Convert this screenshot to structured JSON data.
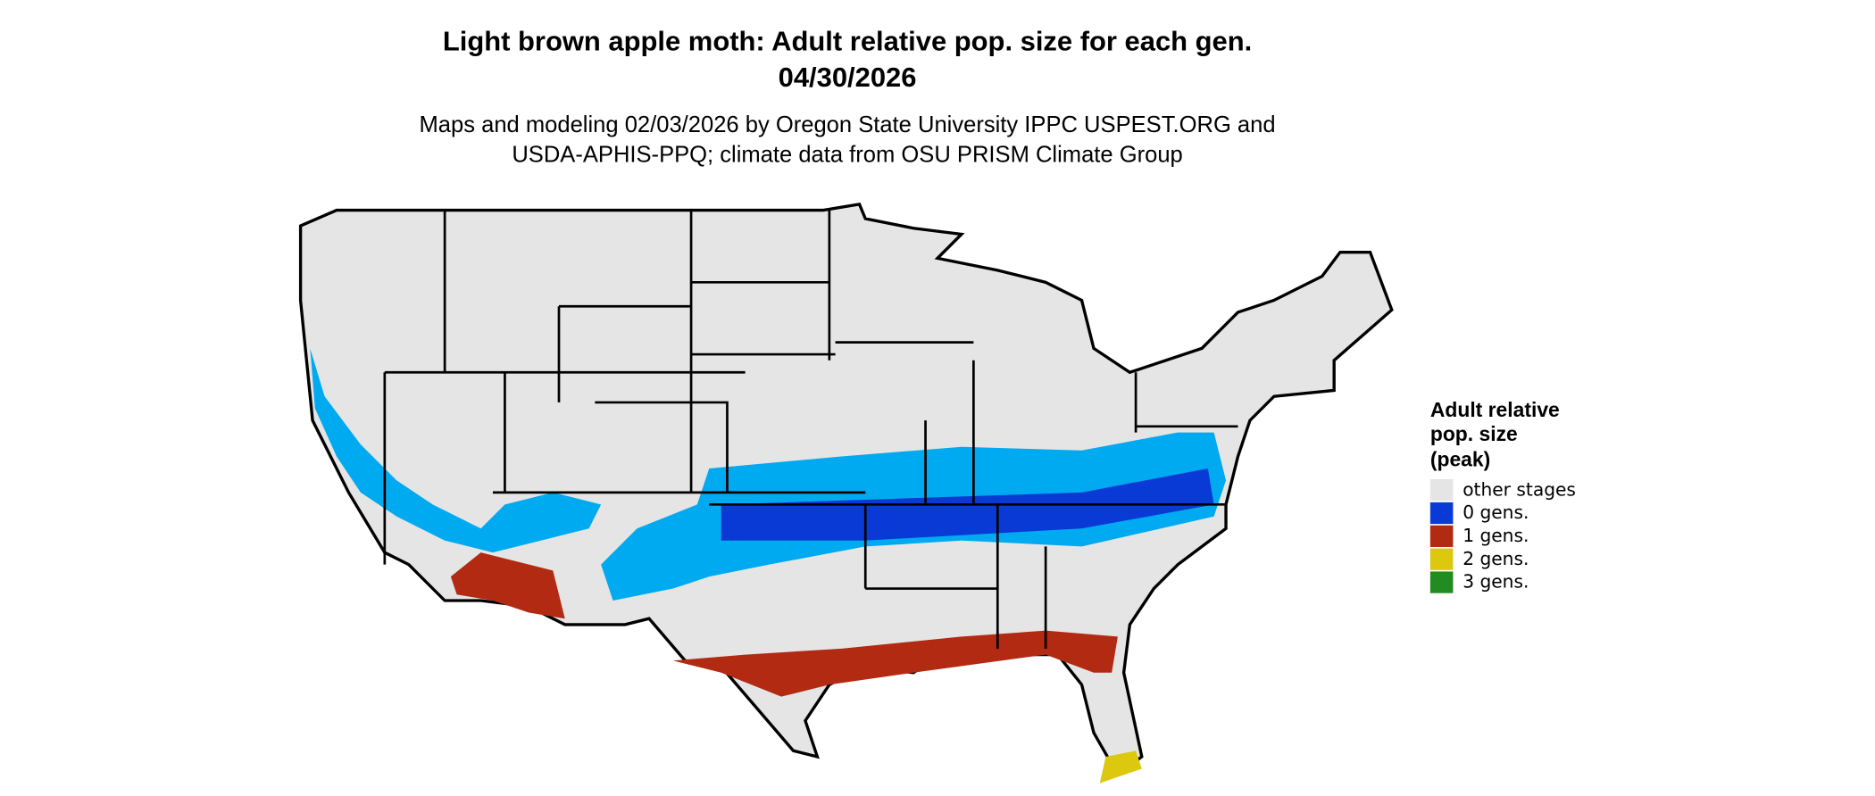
{
  "title": "Light brown apple moth: Adult relative pop. size for each gen.",
  "date": "04/30/2026",
  "subtitle": [
    "Maps and modeling 02/03/2026 by Oregon State University IPPC USPEST.ORG and",
    "USDA-APHIS-PPQ; climate data from OSU PRISM Climate Group"
  ],
  "legend": {
    "title": [
      "Adult relative",
      "pop. size",
      "(peak)"
    ],
    "items": [
      {
        "label": "other stages",
        "color": "#e5e5e5"
      },
      {
        "label": "0 gens.",
        "color": "#0a3ad6"
      },
      {
        "label": "1 gens.",
        "color": "#b22a12"
      },
      {
        "label": "2 gens.",
        "color": "#dcc80e"
      },
      {
        "label": "3 gens.",
        "color": "#228b22"
      }
    ]
  }
}
